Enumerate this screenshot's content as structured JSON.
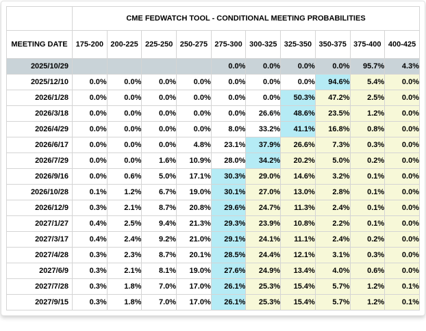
{
  "table": {
    "title": "CME FEDWATCH TOOL - CONDITIONAL MEETING PROBABILITIES",
    "meeting_date_header": "MEETING DATE",
    "rate_range_headers": [
      "175-200",
      "200-225",
      "225-250",
      "250-275",
      "275-300",
      "300-325",
      "325-350",
      "350-375",
      "375-400",
      "400-425"
    ],
    "rows": [
      {
        "date": "2025/10/29",
        "values": [
          "",
          "",
          "",
          "",
          "0.0%",
          "0.0%",
          "0.0%",
          "0.0%",
          "95.7%",
          "4.3%"
        ],
        "selected": true,
        "max_cell": null
      },
      {
        "date": "2025/12/10",
        "values": [
          "0.0%",
          "0.0%",
          "0.0%",
          "0.0%",
          "0.0%",
          "0.0%",
          "0.0%",
          "94.6%",
          "5.4%",
          "0.0%"
        ],
        "selected": false,
        "max_cell": 7
      },
      {
        "date": "2026/1/28",
        "values": [
          "0.0%",
          "0.0%",
          "0.0%",
          "0.0%",
          "0.0%",
          "0.0%",
          "50.3%",
          "47.2%",
          "2.5%",
          "0.0%"
        ],
        "selected": false,
        "max_cell": 6
      },
      {
        "date": "2026/3/18",
        "values": [
          "0.0%",
          "0.0%",
          "0.0%",
          "0.0%",
          "0.0%",
          "26.6%",
          "48.6%",
          "23.5%",
          "1.2%",
          "0.0%"
        ],
        "selected": false,
        "max_cell": 6
      },
      {
        "date": "2026/4/29",
        "values": [
          "0.0%",
          "0.0%",
          "0.0%",
          "0.0%",
          "8.0%",
          "33.2%",
          "41.1%",
          "16.8%",
          "0.8%",
          "0.0%"
        ],
        "selected": false,
        "max_cell": 6
      },
      {
        "date": "2026/6/17",
        "values": [
          "0.0%",
          "0.0%",
          "0.0%",
          "4.8%",
          "23.1%",
          "37.9%",
          "26.6%",
          "7.3%",
          "0.3%",
          "0.0%"
        ],
        "selected": false,
        "max_cell": 5
      },
      {
        "date": "2026/7/29",
        "values": [
          "0.0%",
          "0.0%",
          "1.6%",
          "10.9%",
          "28.0%",
          "34.2%",
          "20.2%",
          "5.0%",
          "0.2%",
          "0.0%"
        ],
        "selected": false,
        "max_cell": 5
      },
      {
        "date": "2026/9/16",
        "values": [
          "0.0%",
          "0.6%",
          "5.0%",
          "17.1%",
          "30.3%",
          "29.0%",
          "14.6%",
          "3.2%",
          "0.1%",
          "0.0%"
        ],
        "selected": false,
        "max_cell": 4
      },
      {
        "date": "2026/10/28",
        "values": [
          "0.1%",
          "1.2%",
          "6.7%",
          "19.0%",
          "30.1%",
          "27.0%",
          "13.0%",
          "2.8%",
          "0.1%",
          "0.0%"
        ],
        "selected": false,
        "max_cell": 4
      },
      {
        "date": "2026/12/9",
        "values": [
          "0.3%",
          "2.1%",
          "8.7%",
          "20.8%",
          "29.6%",
          "24.7%",
          "11.3%",
          "2.4%",
          "0.1%",
          "0.0%"
        ],
        "selected": false,
        "max_cell": 4
      },
      {
        "date": "2027/1/27",
        "values": [
          "0.4%",
          "2.5%",
          "9.4%",
          "21.3%",
          "29.3%",
          "23.9%",
          "10.8%",
          "2.2%",
          "0.1%",
          "0.0%"
        ],
        "selected": false,
        "max_cell": 4
      },
      {
        "date": "2027/3/17",
        "values": [
          "0.4%",
          "2.4%",
          "9.2%",
          "21.0%",
          "29.1%",
          "24.1%",
          "11.1%",
          "2.4%",
          "0.2%",
          "0.0%"
        ],
        "selected": false,
        "max_cell": 4
      },
      {
        "date": "2027/4/28",
        "values": [
          "0.3%",
          "2.3%",
          "8.7%",
          "20.1%",
          "28.5%",
          "24.4%",
          "12.1%",
          "3.1%",
          "0.3%",
          "0.0%"
        ],
        "selected": false,
        "max_cell": 4
      },
      {
        "date": "2027/6/9",
        "values": [
          "0.3%",
          "2.1%",
          "8.1%",
          "19.0%",
          "27.6%",
          "24.9%",
          "13.4%",
          "4.0%",
          "0.6%",
          "0.0%"
        ],
        "selected": false,
        "max_cell": 4
      },
      {
        "date": "2027/7/28",
        "values": [
          "0.3%",
          "1.8%",
          "7.0%",
          "17.0%",
          "26.1%",
          "25.3%",
          "15.4%",
          "5.7%",
          "1.2%",
          "0.1%"
        ],
        "selected": false,
        "max_cell": 4
      },
      {
        "date": "2027/9/15",
        "values": [
          "0.3%",
          "1.8%",
          "7.0%",
          "17.0%",
          "26.1%",
          "25.3%",
          "15.4%",
          "5.7%",
          "1.2%",
          "0.1%"
        ],
        "selected": false,
        "max_cell": 4
      }
    ],
    "colors": {
      "selected_row_bg": "#c9d3d8",
      "max_probability_bg": "#b5ebf5",
      "right_of_max_bg": "#f7f8d8",
      "grid_border": "#d4d4d4",
      "text": "#000000"
    }
  }
}
